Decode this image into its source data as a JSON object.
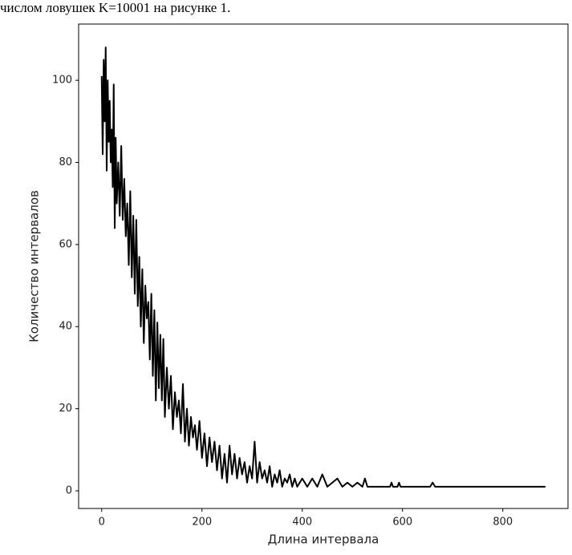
{
  "caption": "числом ловушек K=10001 на рисунке 1.",
  "chart_data": {
    "type": "line",
    "xlabel": "Длина интервала",
    "ylabel": "Количество интервалов",
    "x": [
      0,
      2,
      4,
      6,
      8,
      10,
      12,
      14,
      16,
      18,
      20,
      22,
      24,
      26,
      28,
      30,
      33,
      36,
      39,
      42,
      45,
      48,
      51,
      54,
      57,
      60,
      63,
      66,
      69,
      72,
      75,
      78,
      81,
      84,
      87,
      90,
      93,
      96,
      99,
      102,
      105,
      108,
      111,
      114,
      117,
      120,
      123,
      126,
      130,
      134,
      138,
      142,
      146,
      150,
      154,
      158,
      162,
      166,
      170,
      174,
      178,
      182,
      186,
      190,
      195,
      200,
      205,
      210,
      215,
      220,
      225,
      230,
      235,
      240,
      245,
      250,
      255,
      260,
      265,
      270,
      275,
      280,
      285,
      290,
      295,
      300,
      305,
      310,
      315,
      320,
      325,
      330,
      335,
      340,
      345,
      350,
      355,
      360,
      365,
      370,
      375,
      380,
      385,
      390,
      395,
      400,
      410,
      420,
      430,
      440,
      450,
      460,
      470,
      480,
      490,
      500,
      510,
      520,
      525,
      530,
      540,
      560,
      575,
      578,
      581,
      590,
      593,
      596,
      620,
      655,
      660,
      665,
      670,
      700,
      800,
      885
    ],
    "series": [
      {
        "color": "#000000",
        "values": [
          101,
          82,
          105,
          90,
          108,
          78,
          100,
          85,
          95,
          80,
          88,
          74,
          99,
          64,
          86,
          70,
          80,
          67,
          84,
          66,
          76,
          62,
          70,
          55,
          73,
          52,
          67,
          48,
          66,
          45,
          57,
          40,
          54,
          36,
          50,
          42,
          46,
          32,
          48,
          28,
          44,
          22,
          41,
          25,
          38,
          22,
          37,
          18,
          30,
          20,
          28,
          15,
          24,
          18,
          22,
          14,
          26,
          12,
          20,
          11,
          18,
          13,
          16,
          10,
          17,
          8,
          14,
          6,
          13,
          7,
          12,
          5,
          11,
          3,
          9,
          2,
          11,
          4,
          9,
          3,
          8,
          4,
          7,
          2,
          6,
          3,
          12,
          2,
          7,
          3,
          5,
          2,
          6,
          1,
          4,
          2,
          5,
          1,
          3,
          2,
          4,
          1,
          3,
          1,
          2,
          3,
          1,
          3,
          1,
          4,
          1,
          2,
          3,
          1,
          2,
          1,
          2,
          1,
          3,
          1,
          1,
          1,
          1,
          2,
          1,
          1,
          2,
          1,
          1,
          1,
          2,
          1,
          1,
          1,
          1,
          1
        ]
      }
    ],
    "xlim": [
      -46,
      930
    ],
    "ylim": [
      -4.3,
      113.7
    ],
    "xticks": [
      0,
      200,
      400,
      600,
      800
    ],
    "yticks": [
      0,
      20,
      40,
      60,
      80,
      100
    ],
    "grid": false
  }
}
